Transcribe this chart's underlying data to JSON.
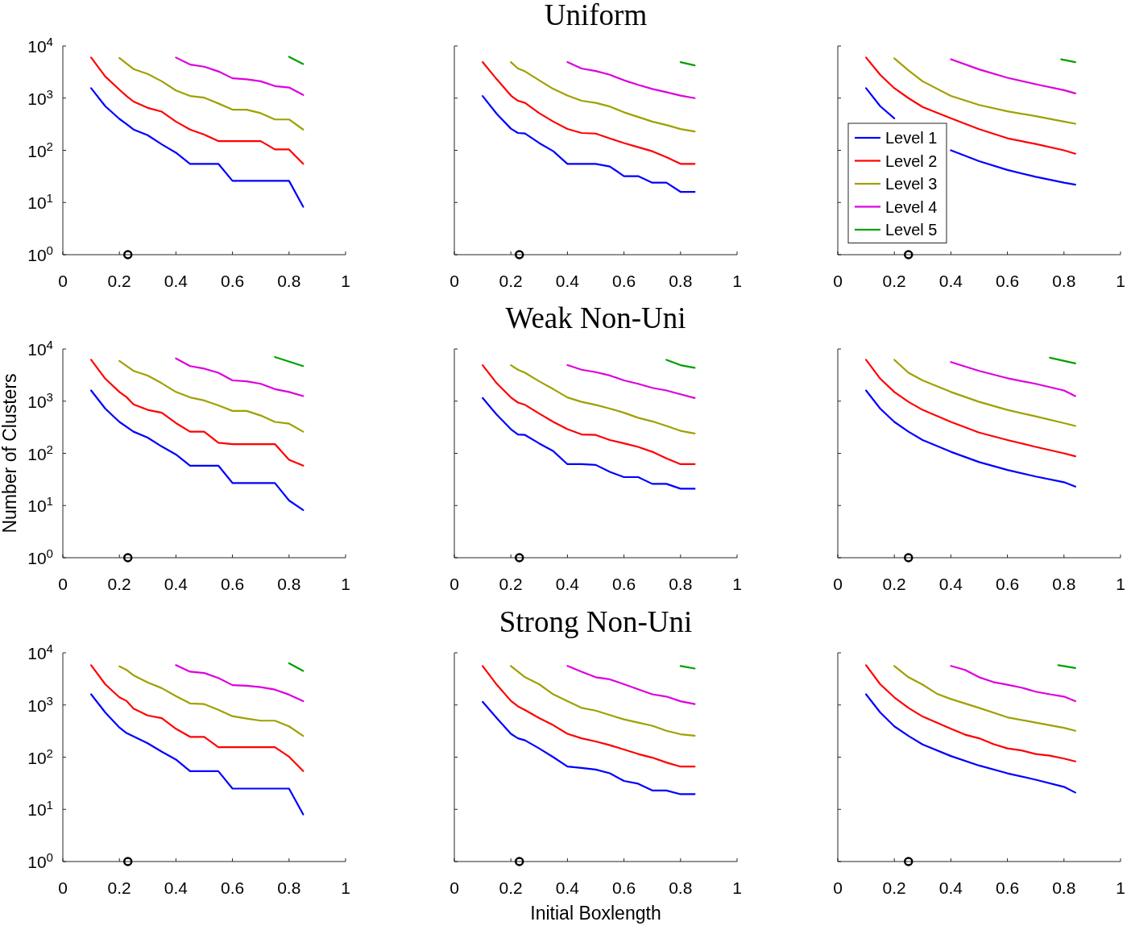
{
  "chart_data": [
    {
      "type": "line",
      "xlim": [
        0,
        1
      ],
      "xticks": [
        0,
        0.2,
        0.4,
        0.6,
        0.8,
        1
      ],
      "ylim": [
        1,
        10000
      ],
      "yticks": [
        {
          "value": 1,
          "label": "10$^{0}$"
        },
        {
          "value": 10,
          "label": "10$^{1}$"
        },
        {
          "value": 100,
          "label": "10$^{2}$"
        },
        {
          "value": 1000,
          "label": "10$^{3}$"
        },
        {
          "value": 10000,
          "label": "10$^{4}$"
        }
      ],
      "log": "y",
      "series": [
        {
          "color": "#0000ff",
          "x": [
            0.1,
            0.15,
            0.2,
            0.225,
            0.25,
            0.3,
            0.35,
            0.4,
            0.45,
            0.5,
            0.55,
            0.6,
            0.65,
            0.7,
            0.75,
            0.8,
            0.85
          ],
          "values": [
            1550,
            700,
            400,
            320,
            250,
            195,
            130,
            90,
            55,
            55,
            55,
            26,
            26,
            26,
            26,
            26,
            8.3
          ]
        },
        {
          "color": "#ff0000",
          "x": [
            0.1,
            0.15,
            0.2,
            0.225,
            0.25,
            0.3,
            0.35,
            0.4,
            0.45,
            0.5,
            0.55,
            0.6,
            0.65,
            0.7,
            0.75,
            0.8,
            0.85
          ],
          "values": [
            6000,
            2600,
            1450,
            1100,
            860,
            650,
            550,
            355,
            250,
            200,
            150,
            150,
            150,
            150,
            104,
            104,
            55
          ]
        },
        {
          "color": "#a0a000",
          "x": [
            0.2,
            0.25,
            0.3,
            0.35,
            0.4,
            0.45,
            0.5,
            0.55,
            0.6,
            0.65,
            0.7,
            0.75,
            0.8,
            0.85
          ],
          "values": [
            5900,
            3600,
            2900,
            2100,
            1400,
            1100,
            1020,
            790,
            600,
            600,
            515,
            390,
            390,
            250
          ]
        },
        {
          "color": "#dd00dd",
          "x": [
            0.4,
            0.45,
            0.5,
            0.55,
            0.6,
            0.65,
            0.7,
            0.75,
            0.8,
            0.85
          ],
          "values": [
            6000,
            4400,
            4000,
            3250,
            2400,
            2300,
            2100,
            1700,
            1600,
            1150
          ]
        },
        {
          "color": "#00a000",
          "x": [
            0.8,
            0.85
          ],
          "values": [
            6200,
            4500
          ]
        },
        {
          "type": "scatter",
          "marker": "circle",
          "color": "#000000",
          "x": [
            0.23
          ],
          "values": [
            1
          ]
        }
      ]
    },
    {
      "type": "line",
      "title": "Uniform",
      "tick_labels": "x",
      "xlim": [
        0,
        1
      ],
      "xticks": [
        0,
        0.2,
        0.4,
        0.6,
        0.8,
        1
      ],
      "ylim": [
        1,
        10000
      ],
      "yticks": [
        1,
        10,
        100,
        1000,
        10000
      ],
      "log": "y",
      "series": [
        {
          "color": "#0000ff",
          "x": [
            0.1,
            0.15,
            0.2,
            0.225,
            0.25,
            0.3,
            0.35,
            0.4,
            0.45,
            0.5,
            0.55,
            0.6,
            0.65,
            0.7,
            0.75,
            0.8,
            0.85
          ],
          "values": [
            1100,
            500,
            260,
            215,
            210,
            138,
            96,
            55,
            55,
            55,
            49,
            32,
            32,
            24,
            24,
            16,
            16
          ]
        },
        {
          "color": "#ff0000",
          "x": [
            0.1,
            0.15,
            0.2,
            0.225,
            0.25,
            0.3,
            0.35,
            0.4,
            0.45,
            0.5,
            0.55,
            0.6,
            0.65,
            0.7,
            0.75,
            0.8,
            0.85
          ],
          "values": [
            4900,
            2300,
            1120,
            890,
            810,
            515,
            355,
            257,
            215,
            209,
            169,
            138,
            115,
            96,
            74,
            55,
            55
          ]
        },
        {
          "color": "#a0a000",
          "x": [
            0.2,
            0.225,
            0.25,
            0.3,
            0.35,
            0.4,
            0.45,
            0.5,
            0.55,
            0.6,
            0.65,
            0.7,
            0.75,
            0.8,
            0.85
          ],
          "values": [
            4900,
            3700,
            3250,
            2200,
            1500,
            1120,
            890,
            810,
            690,
            535,
            435,
            355,
            305,
            255,
            230
          ]
        },
        {
          "color": "#dd00dd",
          "x": [
            0.4,
            0.45,
            0.5,
            0.55,
            0.6,
            0.65,
            0.7,
            0.75,
            0.8,
            0.85
          ],
          "values": [
            4900,
            3700,
            3300,
            2800,
            2200,
            1800,
            1500,
            1300,
            1120,
            1000
          ]
        },
        {
          "color": "#00a000",
          "x": [
            0.8,
            0.85
          ],
          "values": [
            4900,
            4250
          ]
        },
        {
          "type": "scatter",
          "marker": "circle",
          "color": "#000000",
          "x": [
            0.23
          ],
          "values": [
            1
          ]
        }
      ]
    },
    {
      "type": "line",
      "tick_labels": "x",
      "legend": "left",
      "xlim": [
        0,
        1
      ],
      "xticks": [
        0,
        0.2,
        0.4,
        0.6,
        0.8,
        1
      ],
      "ylim": [
        1,
        10000
      ],
      "yticks": [
        1,
        10,
        100,
        1000,
        10000
      ],
      "log": "y",
      "series": [
        {
          "name": "Level 1",
          "color": "#0000ff",
          "x": [
            0.1,
            0.15,
            0.2,
            0.25,
            0.3,
            0.35,
            0.4,
            0.5,
            0.6,
            0.7,
            0.8,
            0.84
          ],
          "values": [
            1550,
            700,
            410,
            null,
            null,
            null,
            100,
            62,
            42,
            31,
            24,
            22
          ]
        },
        {
          "name": "Level 2",
          "color": "#ff0000",
          "x": [
            0.1,
            0.15,
            0.2,
            0.25,
            0.3,
            0.4,
            0.5,
            0.6,
            0.7,
            0.8,
            0.84
          ],
          "values": [
            6000,
            2800,
            1550,
            1000,
            675,
            410,
            255,
            170,
            132,
            100,
            86
          ]
        },
        {
          "name": "Level 3",
          "color": "#a0a000",
          "x": [
            0.2,
            0.25,
            0.3,
            0.4,
            0.5,
            0.6,
            0.7,
            0.8,
            0.84
          ],
          "values": [
            5800,
            3400,
            2100,
            1100,
            740,
            560,
            450,
            355,
            323
          ]
        },
        {
          "name": "Level 4",
          "color": "#dd00dd",
          "x": [
            0.4,
            0.5,
            0.6,
            0.7,
            0.8,
            0.84
          ],
          "values": [
            5550,
            3550,
            2450,
            1850,
            1420,
            1230
          ]
        },
        {
          "name": "Level 5",
          "color": "#00a000",
          "x": [
            0.79,
            0.84
          ],
          "values": [
            5550,
            4900
          ]
        },
        {
          "type": "scatter",
          "marker": "circle",
          "color": "#000000",
          "x": [
            0.25
          ],
          "values": [
            1
          ]
        }
      ]
    },
    {
      "type": "line",
      "ylabel": "Number of Clusters",
      "xlim": [
        0,
        1
      ],
      "xticks": [
        0,
        0.2,
        0.4,
        0.6,
        0.8,
        1
      ],
      "ylim": [
        1,
        10000
      ],
      "yticks": [
        {
          "value": 1,
          "label": "10$^{0}$"
        },
        {
          "value": 10,
          "label": "10$^{1}$"
        },
        {
          "value": 100,
          "label": "10$^{2}$"
        },
        {
          "value": 1000,
          "label": "10$^{3}$"
        },
        {
          "value": 10000,
          "label": "10$^{4}$"
        }
      ],
      "log": "y",
      "series": [
        {
          "color": "#0000ff",
          "x": [
            0.1,
            0.15,
            0.2,
            0.25,
            0.3,
            0.35,
            0.4,
            0.45,
            0.5,
            0.55,
            0.6,
            0.65,
            0.7,
            0.75,
            0.8,
            0.85
          ],
          "values": [
            1600,
            720,
            400,
            260,
            200,
            135,
            95,
            58,
            58,
            58,
            27,
            27,
            27,
            27,
            12.5,
            8.2
          ]
        },
        {
          "color": "#ff0000",
          "x": [
            0.1,
            0.15,
            0.2,
            0.225,
            0.25,
            0.3,
            0.35,
            0.4,
            0.45,
            0.5,
            0.55,
            0.6,
            0.65,
            0.7,
            0.75,
            0.8,
            0.85
          ],
          "values": [
            6200,
            2700,
            1500,
            1200,
            870,
            680,
            600,
            380,
            260,
            260,
            160,
            150,
            150,
            150,
            150,
            75,
            58
          ]
        },
        {
          "color": "#a0a000",
          "x": [
            0.2,
            0.25,
            0.3,
            0.35,
            0.4,
            0.45,
            0.5,
            0.55,
            0.6,
            0.65,
            0.7,
            0.75,
            0.8,
            0.85
          ],
          "values": [
            5900,
            3800,
            3100,
            2200,
            1500,
            1180,
            1030,
            830,
            650,
            650,
            530,
            400,
            370,
            260
          ]
        },
        {
          "color": "#dd00dd",
          "x": [
            0.4,
            0.45,
            0.5,
            0.55,
            0.6,
            0.65,
            0.7,
            0.75,
            0.8,
            0.85
          ],
          "values": [
            6600,
            4700,
            4200,
            3500,
            2500,
            2400,
            2150,
            1700,
            1500,
            1250
          ]
        },
        {
          "color": "#00a000",
          "x": [
            0.75,
            0.85
          ],
          "values": [
            7000,
            4700
          ]
        },
        {
          "type": "scatter",
          "marker": "circle",
          "color": "#000000",
          "x": [
            0.23
          ],
          "values": [
            1
          ]
        }
      ]
    },
    {
      "type": "line",
      "title": "Weak Non-Uni",
      "tick_labels": "x",
      "xlim": [
        0,
        1
      ],
      "xticks": [
        0,
        0.2,
        0.4,
        0.6,
        0.8,
        1
      ],
      "ylim": [
        1,
        10000
      ],
      "yticks": [
        1,
        10,
        100,
        1000,
        10000
      ],
      "log": "y",
      "series": [
        {
          "color": "#0000ff",
          "x": [
            0.1,
            0.15,
            0.2,
            0.225,
            0.25,
            0.3,
            0.35,
            0.4,
            0.45,
            0.5,
            0.55,
            0.6,
            0.65,
            0.7,
            0.75,
            0.8,
            0.85
          ],
          "values": [
            1150,
            550,
            290,
            230,
            225,
            155,
            110,
            62,
            62,
            60,
            44,
            35,
            35,
            26,
            26,
            21,
            21
          ]
        },
        {
          "color": "#ff0000",
          "x": [
            0.1,
            0.15,
            0.2,
            0.225,
            0.25,
            0.3,
            0.35,
            0.4,
            0.45,
            0.5,
            0.55,
            0.6,
            0.65,
            0.7,
            0.75,
            0.8,
            0.85
          ],
          "values": [
            4900,
            2200,
            1180,
            940,
            850,
            580,
            400,
            290,
            230,
            225,
            180,
            155,
            133,
            107,
            80,
            62,
            62
          ]
        },
        {
          "color": "#a0a000",
          "x": [
            0.2,
            0.225,
            0.25,
            0.3,
            0.35,
            0.4,
            0.45,
            0.5,
            0.55,
            0.6,
            0.65,
            0.7,
            0.75,
            0.8,
            0.85
          ],
          "values": [
            4900,
            4000,
            3500,
            2400,
            1700,
            1180,
            970,
            850,
            720,
            600,
            480,
            410,
            335,
            270,
            240
          ]
        },
        {
          "color": "#dd00dd",
          "x": [
            0.4,
            0.45,
            0.5,
            0.55,
            0.6,
            0.65,
            0.7,
            0.75,
            0.8,
            0.85
          ],
          "values": [
            4900,
            4000,
            3600,
            3100,
            2500,
            2150,
            1800,
            1600,
            1350,
            1150
          ]
        },
        {
          "color": "#00a000",
          "x": [
            0.75,
            0.8,
            0.85
          ],
          "values": [
            6200,
            4900,
            4350
          ]
        },
        {
          "type": "scatter",
          "marker": "circle",
          "color": "#000000",
          "x": [
            0.23
          ],
          "values": [
            1
          ]
        }
      ]
    },
    {
      "type": "line",
      "tick_labels": "x",
      "xlim": [
        0,
        1
      ],
      "xticks": [
        0,
        0.2,
        0.4,
        0.6,
        0.8,
        1
      ],
      "ylim": [
        1,
        10000
      ],
      "yticks": [
        1,
        10,
        100,
        1000,
        10000
      ],
      "log": "y",
      "series": [
        {
          "color": "#0000ff",
          "x": [
            0.1,
            0.15,
            0.2,
            0.25,
            0.3,
            0.4,
            0.5,
            0.6,
            0.7,
            0.8,
            0.84
          ],
          "values": [
            1600,
            720,
            400,
            260,
            180,
            107,
            68,
            48,
            36,
            28,
            23
          ]
        },
        {
          "color": "#ff0000",
          "x": [
            0.1,
            0.15,
            0.2,
            0.25,
            0.3,
            0.4,
            0.5,
            0.6,
            0.7,
            0.8,
            0.84
          ],
          "values": [
            6200,
            2700,
            1500,
            970,
            680,
            400,
            250,
            180,
            133,
            100,
            88
          ]
        },
        {
          "color": "#a0a000",
          "x": [
            0.2,
            0.25,
            0.3,
            0.4,
            0.5,
            0.6,
            0.7,
            0.8,
            0.84
          ],
          "values": [
            6200,
            3500,
            2500,
            1500,
            970,
            680,
            510,
            380,
            335
          ]
        },
        {
          "color": "#dd00dd",
          "x": [
            0.4,
            0.5,
            0.6,
            0.7,
            0.8,
            0.84
          ],
          "values": [
            5600,
            3800,
            2750,
            2150,
            1600,
            1250
          ]
        },
        {
          "color": "#00a000",
          "x": [
            0.75,
            0.84
          ],
          "values": [
            6800,
            5300
          ]
        },
        {
          "type": "scatter",
          "marker": "circle",
          "color": "#000000",
          "x": [
            0.25
          ],
          "values": [
            1
          ]
        }
      ]
    },
    {
      "type": "line",
      "xlim": [
        0,
        1
      ],
      "xticks": [
        0,
        0.2,
        0.4,
        0.6,
        0.8,
        1
      ],
      "ylim": [
        1,
        10000
      ],
      "yticks": [
        {
          "value": 1,
          "label": "10$^{0}$"
        },
        {
          "value": 10,
          "label": "10$^{1}$"
        },
        {
          "value": 100,
          "label": "10$^{2}$"
        },
        {
          "value": 1000,
          "label": "10$^{3}$"
        },
        {
          "value": 10000,
          "label": "10$^{4}$"
        }
      ],
      "log": "y",
      "series": [
        {
          "color": "#0000ff",
          "x": [
            0.1,
            0.15,
            0.2,
            0.225,
            0.25,
            0.3,
            0.35,
            0.4,
            0.45,
            0.5,
            0.55,
            0.6,
            0.65,
            0.7,
            0.75,
            0.8,
            0.85
          ],
          "values": [
            1600,
            720,
            370,
            290,
            250,
            185,
            127,
            90,
            54,
            54,
            54,
            25,
            25,
            25,
            25,
            25,
            8
          ]
        },
        {
          "color": "#ff0000",
          "x": [
            0.1,
            0.15,
            0.2,
            0.225,
            0.25,
            0.3,
            0.35,
            0.4,
            0.45,
            0.5,
            0.55,
            0.6,
            0.65,
            0.7,
            0.75,
            0.8,
            0.85
          ],
          "values": [
            5800,
            2500,
            1400,
            1200,
            850,
            630,
            560,
            350,
            245,
            245,
            155,
            155,
            155,
            155,
            155,
            102,
            54
          ]
        },
        {
          "color": "#a0a000",
          "x": [
            0.2,
            0.225,
            0.25,
            0.3,
            0.35,
            0.4,
            0.45,
            0.5,
            0.55,
            0.6,
            0.65,
            0.7,
            0.75,
            0.8,
            0.85
          ],
          "values": [
            5500,
            4700,
            3700,
            2700,
            2100,
            1480,
            1070,
            1040,
            810,
            610,
            550,
            500,
            500,
            390,
            255
          ]
        },
        {
          "color": "#dd00dd",
          "x": [
            0.4,
            0.45,
            0.5,
            0.55,
            0.6,
            0.65,
            0.7,
            0.75,
            0.8,
            0.85
          ],
          "values": [
            5800,
            4350,
            4100,
            3300,
            2400,
            2330,
            2200,
            1970,
            1580,
            1180
          ]
        },
        {
          "color": "#00a000",
          "x": [
            0.8,
            0.85
          ],
          "values": [
            6300,
            4500
          ]
        },
        {
          "type": "scatter",
          "marker": "circle",
          "color": "#000000",
          "x": [
            0.23
          ],
          "values": [
            1
          ]
        }
      ]
    },
    {
      "type": "line",
      "title": "Strong Non-Uni",
      "xlabel": "Initial Boxlength",
      "tick_labels": "x",
      "xlim": [
        0,
        1
      ],
      "xticks": [
        0,
        0.2,
        0.4,
        0.6,
        0.8,
        1
      ],
      "ylim": [
        1,
        10000
      ],
      "yticks": [
        1,
        10,
        100,
        1000,
        10000
      ],
      "log": "y",
      "series": [
        {
          "color": "#0000ff",
          "x": [
            0.1,
            0.15,
            0.2,
            0.225,
            0.25,
            0.3,
            0.35,
            0.4,
            0.45,
            0.5,
            0.55,
            0.6,
            0.65,
            0.7,
            0.75,
            0.8,
            0.85
          ],
          "values": [
            1150,
            560,
            280,
            230,
            210,
            147,
            100,
            66,
            62,
            58,
            49,
            35,
            31,
            23,
            23,
            19.5,
            19.5
          ]
        },
        {
          "color": "#ff0000",
          "x": [
            0.1,
            0.15,
            0.2,
            0.225,
            0.25,
            0.3,
            0.35,
            0.4,
            0.45,
            0.5,
            0.55,
            0.6,
            0.65,
            0.7,
            0.75,
            0.8,
            0.85
          ],
          "values": [
            5600,
            2450,
            1200,
            940,
            800,
            560,
            410,
            280,
            230,
            200,
            170,
            140,
            115,
            98,
            79,
            66,
            66
          ]
        },
        {
          "color": "#a0a000",
          "x": [
            0.2,
            0.25,
            0.3,
            0.35,
            0.4,
            0.45,
            0.5,
            0.55,
            0.6,
            0.65,
            0.7,
            0.75,
            0.8,
            0.85
          ],
          "values": [
            5600,
            3400,
            2500,
            1600,
            1180,
            880,
            780,
            640,
            530,
            460,
            400,
            320,
            275,
            257
          ]
        },
        {
          "color": "#dd00dd",
          "x": [
            0.4,
            0.45,
            0.5,
            0.55,
            0.6,
            0.65,
            0.7,
            0.75,
            0.8,
            0.85
          ],
          "values": [
            5600,
            4350,
            3400,
            3100,
            2500,
            2000,
            1600,
            1450,
            1180,
            1040
          ]
        },
        {
          "color": "#00a000",
          "x": [
            0.8,
            0.85
          ],
          "values": [
            5600,
            5000
          ]
        },
        {
          "type": "scatter",
          "marker": "circle",
          "color": "#000000",
          "x": [
            0.23
          ],
          "values": [
            1
          ]
        }
      ]
    },
    {
      "type": "line",
      "tick_labels": "x",
      "xlim": [
        0,
        1
      ],
      "xticks": [
        0,
        0.2,
        0.4,
        0.6,
        0.8,
        1
      ],
      "ylim": [
        1,
        10000
      ],
      "yticks": [
        1,
        10,
        100,
        1000,
        10000
      ],
      "log": "y",
      "series": [
        {
          "color": "#0000ff",
          "x": [
            0.1,
            0.15,
            0.2,
            0.25,
            0.3,
            0.4,
            0.5,
            0.6,
            0.7,
            0.8,
            0.84
          ],
          "values": [
            1600,
            720,
            390,
            255,
            175,
            105,
            69,
            49,
            37,
            27,
            21
          ]
        },
        {
          "color": "#ff0000",
          "x": [
            0.1,
            0.15,
            0.2,
            0.25,
            0.3,
            0.4,
            0.45,
            0.5,
            0.55,
            0.6,
            0.65,
            0.7,
            0.75,
            0.8,
            0.84
          ],
          "values": [
            5800,
            2500,
            1400,
            880,
            600,
            350,
            270,
            230,
            178,
            147,
            135,
            115,
            107,
            94,
            83
          ]
        },
        {
          "color": "#a0a000",
          "x": [
            0.2,
            0.25,
            0.3,
            0.35,
            0.4,
            0.5,
            0.6,
            0.7,
            0.8,
            0.84
          ],
          "values": [
            5600,
            3400,
            2450,
            1650,
            1300,
            880,
            580,
            460,
            365,
            320
          ]
        },
        {
          "color": "#dd00dd",
          "x": [
            0.4,
            0.45,
            0.5,
            0.55,
            0.6,
            0.65,
            0.7,
            0.75,
            0.8,
            0.84
          ],
          "values": [
            5600,
            4700,
            3400,
            2750,
            2450,
            2150,
            1800,
            1600,
            1450,
            1180
          ]
        },
        {
          "color": "#00a000",
          "x": [
            0.78,
            0.84
          ],
          "values": [
            5800,
            5100
          ]
        },
        {
          "type": "scatter",
          "marker": "circle",
          "color": "#000000",
          "x": [
            0.25
          ],
          "values": [
            1
          ]
        }
      ]
    }
  ]
}
